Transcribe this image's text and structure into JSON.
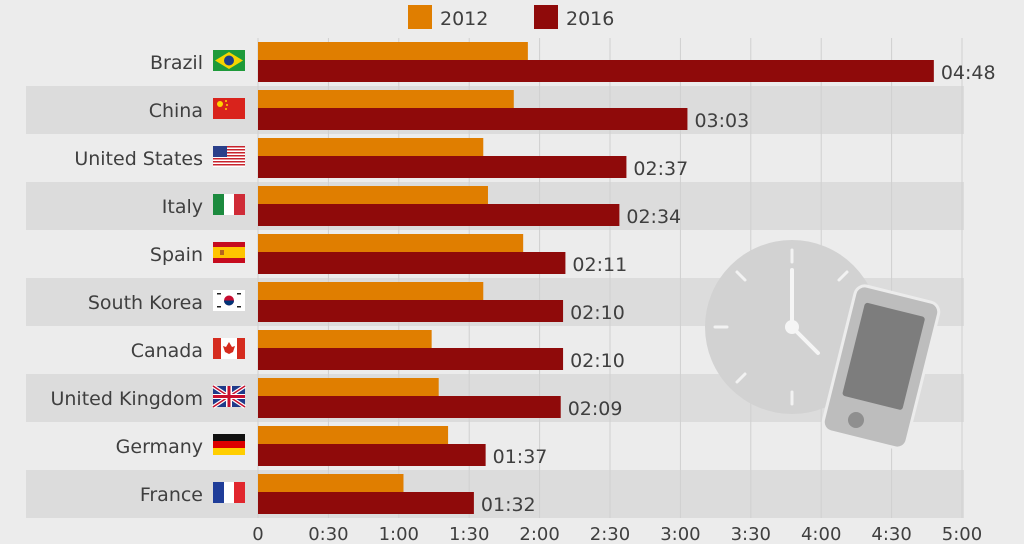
{
  "chart_data": {
    "type": "bar",
    "orientation": "horizontal",
    "title": "",
    "xlabel": "",
    "ylabel": "",
    "categories": [
      "Brazil",
      "China",
      "United States",
      "Italy",
      "Spain",
      "South Korea",
      "Canada",
      "United Kingdom",
      "Germany",
      "France"
    ],
    "flags": [
      "flag-brazil",
      "flag-china",
      "flag-united-states",
      "flag-italy",
      "flag-spain",
      "flag-south-korea",
      "flag-canada",
      "flag-united-kingdom",
      "flag-germany",
      "flag-france"
    ],
    "series": [
      {
        "name": "2012",
        "color": "#e07e00",
        "values": [
          115,
          109,
          96,
          98,
          113,
          96,
          74,
          77,
          81,
          62
        ]
      },
      {
        "name": "2016",
        "color": "#8f0a0a",
        "values": [
          288,
          183,
          157,
          154,
          131,
          130,
          130,
          129,
          97,
          92
        ],
        "labels": [
          "04:48",
          "03:03",
          "02:37",
          "02:34",
          "02:11",
          "02:10",
          "02:10",
          "02:09",
          "01:37",
          "01:32"
        ]
      }
    ],
    "xlim": [
      0,
      300
    ],
    "xticks": [
      0,
      30,
      60,
      90,
      120,
      150,
      180,
      210,
      240,
      270,
      300
    ],
    "xticklabels": [
      "0",
      "0:30",
      "1:00",
      "1:30",
      "2:00",
      "2:30",
      "3:00",
      "3:30",
      "4:00",
      "4:30",
      "5:00"
    ],
    "grid": true,
    "legend": "top-center",
    "decoration": [
      "clock-icon",
      "smartphone-icon"
    ]
  }
}
